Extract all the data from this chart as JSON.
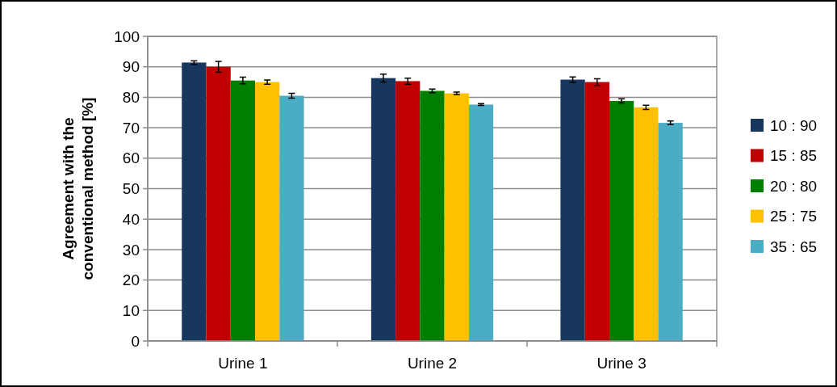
{
  "chart_data": {
    "type": "bar",
    "ylabel": "Agreement with the conventional method [%]",
    "categories": [
      "Urine 1",
      "Urine 2",
      "Urine 3"
    ],
    "series": [
      {
        "name": "10 : 90",
        "color": "#17375e",
        "values": [
          91.4,
          86.3,
          85.8
        ],
        "errors": [
          0.6,
          1.3,
          0.9
        ]
      },
      {
        "name": "15 : 85",
        "color": "#c00000",
        "values": [
          90,
          85.3,
          85
        ],
        "errors": [
          1.8,
          1,
          1.1
        ]
      },
      {
        "name": "20 : 80",
        "color": "#008000",
        "values": [
          85.5,
          82.1,
          78.8
        ],
        "errors": [
          1.1,
          0.6,
          0.7
        ]
      },
      {
        "name": "25 : 75",
        "color": "#ffc000",
        "values": [
          85,
          81.3,
          76.7
        ],
        "errors": [
          0.7,
          0.4,
          0.7
        ]
      },
      {
        "name": "35 : 65",
        "color": "#4bacc6",
        "values": [
          80.5,
          77.6,
          71.6
        ],
        "errors": [
          0.8,
          0.3,
          0.6
        ]
      }
    ],
    "ylim": [
      0,
      100
    ],
    "yticks": [
      0,
      10,
      20,
      30,
      40,
      50,
      60,
      70,
      80,
      90,
      100
    ],
    "grid": "y",
    "legend": "right"
  }
}
